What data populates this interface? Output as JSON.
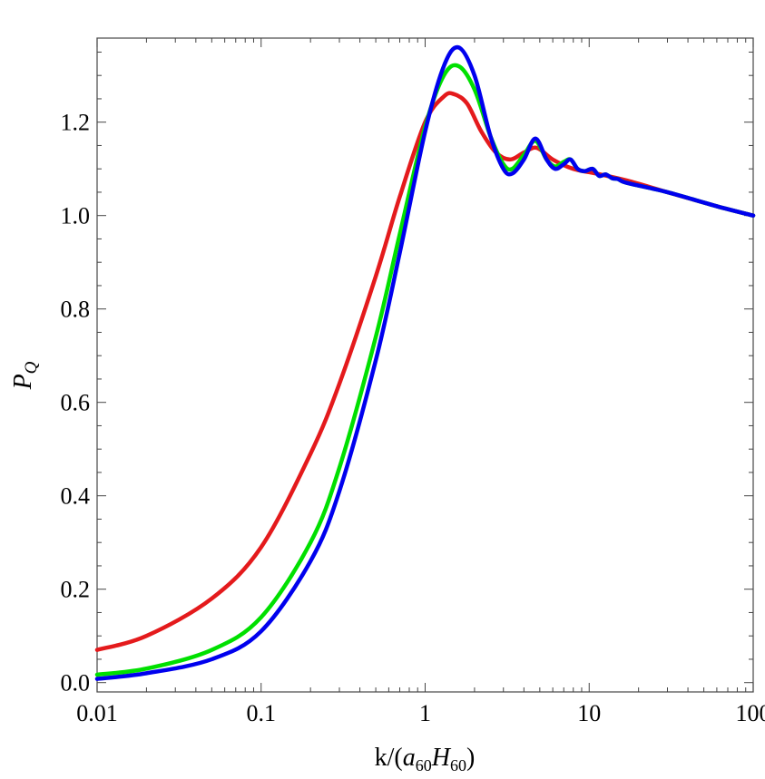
{
  "chart_data": {
    "type": "line",
    "xlabel_parts": [
      "k/(",
      "a",
      "60",
      "H",
      "60",
      ")"
    ],
    "ylabel_parts": [
      "P",
      "Q"
    ],
    "x_scale": "log",
    "xlim": [
      0.01,
      100
    ],
    "ylim": [
      -0.02,
      1.38
    ],
    "xticks": [
      0.01,
      0.1,
      1,
      10,
      100
    ],
    "xtick_labels": [
      "0.01",
      "0.1",
      "1",
      "10",
      "100"
    ],
    "yticks": [
      0.0,
      0.2,
      0.4,
      0.6,
      0.8,
      1.0,
      1.2
    ],
    "ytick_labels": [
      "0.0",
      "0.2",
      "0.4",
      "0.6",
      "0.8",
      "1.0",
      "1.2"
    ],
    "grid": false,
    "legend": "none",
    "series": [
      {
        "color": "#e41a1c",
        "x": [
          0.01,
          0.02,
          0.05,
          0.1,
          0.2,
          0.3,
          0.5,
          0.7,
          1.0,
          1.3,
          1.5,
          1.8,
          2.2,
          2.7,
          3.3,
          4.0,
          4.8,
          6.0,
          8.0,
          11.0,
          17.0,
          30.0,
          60.0,
          100.0
        ],
        "y": [
          0.07,
          0.1,
          0.18,
          0.29,
          0.49,
          0.64,
          0.87,
          1.04,
          1.2,
          1.255,
          1.26,
          1.24,
          1.18,
          1.135,
          1.12,
          1.135,
          1.145,
          1.12,
          1.1,
          1.09,
          1.075,
          1.05,
          1.02,
          1.0
        ]
      },
      {
        "color": "#00e000",
        "x": [
          0.01,
          0.02,
          0.05,
          0.1,
          0.2,
          0.3,
          0.5,
          0.7,
          1.0,
          1.3,
          1.6,
          2.0,
          2.5,
          3.0,
          3.4,
          4.0,
          4.7,
          5.5,
          6.2,
          7.0,
          7.7,
          8.5,
          9.4,
          10.5,
          11.5,
          12.6,
          13.8,
          15.0,
          17.0,
          30.0,
          60.0,
          100.0
        ],
        "y": [
          0.017,
          0.03,
          0.07,
          0.14,
          0.3,
          0.46,
          0.74,
          0.96,
          1.19,
          1.3,
          1.32,
          1.27,
          1.17,
          1.11,
          1.1,
          1.13,
          1.16,
          1.12,
          1.105,
          1.115,
          1.12,
          1.1,
          1.095,
          1.1,
          1.085,
          1.088,
          1.08,
          1.078,
          1.07,
          1.05,
          1.02,
          1.0
        ]
      },
      {
        "color": "#0000ee",
        "x": [
          0.01,
          0.02,
          0.05,
          0.1,
          0.2,
          0.3,
          0.5,
          0.7,
          1.0,
          1.3,
          1.6,
          2.0,
          2.5,
          3.0,
          3.4,
          4.0,
          4.7,
          5.5,
          6.2,
          7.0,
          7.7,
          8.5,
          9.4,
          10.5,
          11.5,
          12.6,
          13.8,
          15.0,
          17.0,
          30.0,
          60.0,
          100.0
        ],
        "y": [
          0.008,
          0.02,
          0.05,
          0.11,
          0.26,
          0.41,
          0.69,
          0.92,
          1.18,
          1.32,
          1.36,
          1.3,
          1.17,
          1.1,
          1.09,
          1.12,
          1.165,
          1.12,
          1.1,
          1.11,
          1.12,
          1.1,
          1.095,
          1.1,
          1.085,
          1.088,
          1.08,
          1.078,
          1.07,
          1.05,
          1.02,
          1.0
        ]
      }
    ]
  }
}
